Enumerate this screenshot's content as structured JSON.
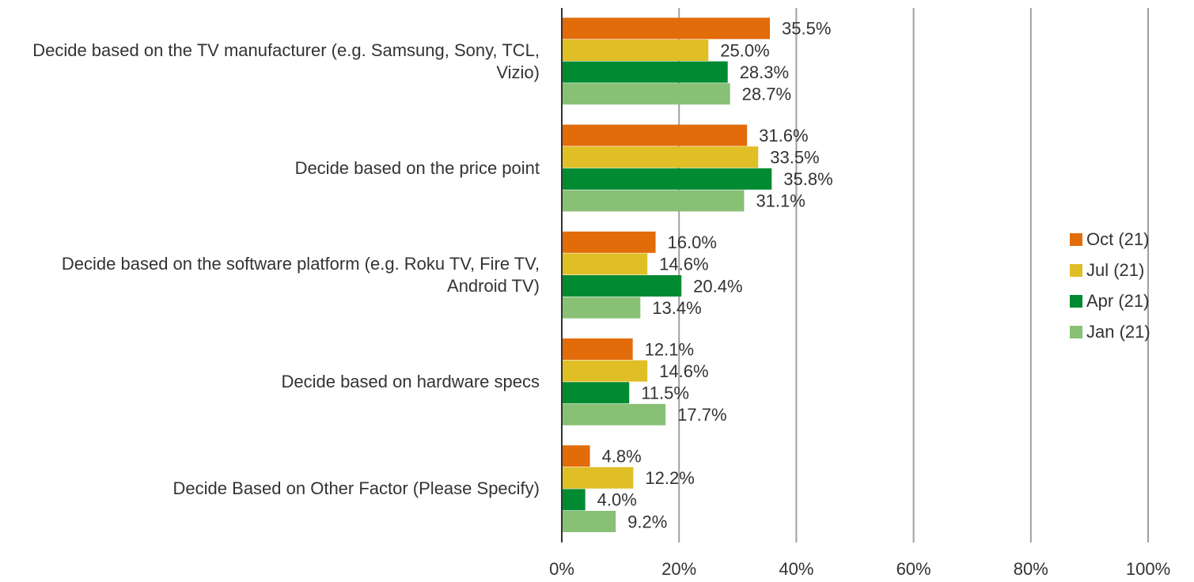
{
  "chart_data": {
    "type": "hbar",
    "categories": [
      "Decide based on the TV manufacturer (e.g. Samsung, Sony, TCL, Vizio)",
      "Decide based on the price point",
      "Decide based on the software platform (e.g. Roku TV, Fire TV, Android TV)",
      "Decide based on hardware specs",
      "Decide Based on Other Factor (Please Specify)"
    ],
    "series": [
      {
        "name": "Oct (21)",
        "color": "#e26b0a",
        "values": [
          35.5,
          31.6,
          16.0,
          12.1,
          4.8
        ],
        "value_labels": [
          "35.5%",
          "31.6%",
          "16.0%",
          "12.1%",
          "4.8%"
        ]
      },
      {
        "name": "Jul (21)",
        "color": "#dfbe26",
        "values": [
          25.0,
          33.5,
          14.6,
          14.6,
          12.2
        ],
        "value_labels": [
          "25.0%",
          "33.5%",
          "14.6%",
          "14.6%",
          "12.2%"
        ]
      },
      {
        "name": "Apr (21)",
        "color": "#008a32",
        "values": [
          28.3,
          35.8,
          20.4,
          11.5,
          4.0
        ],
        "value_labels": [
          "28.3%",
          "35.8%",
          "20.4%",
          "11.5%",
          "4.0%"
        ]
      },
      {
        "name": "Jan (21)",
        "color": "#88c075",
        "values": [
          28.7,
          31.1,
          13.4,
          17.7,
          9.2
        ],
        "value_labels": [
          "28.7%",
          "31.1%",
          "13.4%",
          "17.7%",
          "9.2%"
        ]
      }
    ],
    "xlim": [
      0,
      100
    ],
    "xticks": [
      {
        "value": 0,
        "label": "0%"
      },
      {
        "value": 20,
        "label": "20%"
      },
      {
        "value": 40,
        "label": "40%"
      },
      {
        "value": 60,
        "label": "60%"
      },
      {
        "value": 80,
        "label": "80%"
      },
      {
        "value": 100,
        "label": "100%"
      }
    ],
    "grid": true,
    "legend": "right"
  }
}
